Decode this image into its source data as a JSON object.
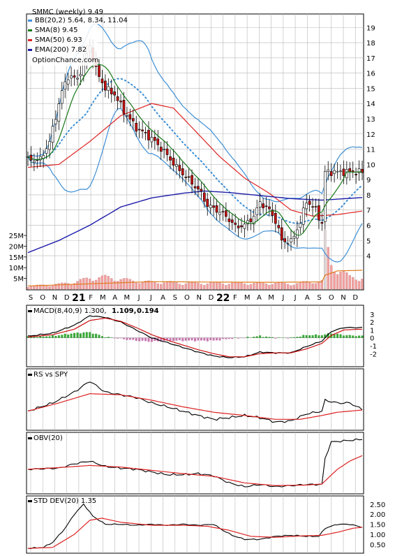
{
  "colors": {
    "bb": "#3d8fd6",
    "sma8": "#1a7a1a",
    "sma50": "#dd2222",
    "ema200": "#1c1ca8",
    "up": "#ffffff",
    "down": "#cc1111",
    "volume": "#f2a0a0",
    "volume_avg": "#e07a1a",
    "macd": "#000000",
    "macd_signal": "#cc1111",
    "macd_hist": "#3aa83a",
    "series_line": "#000000",
    "avg_line": "#dd2222"
  },
  "chart_data": [
    {
      "type": "candlestick",
      "title": "SMMC (weekly) 9.49",
      "watermark": "OptionChance.com",
      "legend": [
        {
          "key": "bb",
          "label": "BB(20,2) 5.64, 8.34, 11.04"
        },
        {
          "key": "sma8",
          "label": "SMA(8) 9.45"
        },
        {
          "key": "sma50",
          "label": "SMA(50) 6.93"
        },
        {
          "key": "ema200",
          "label": "EMA(200) 7.82"
        }
      ],
      "ylim": [
        2.9,
        19.7
      ],
      "y_ticks": [
        "4",
        "5",
        "6",
        "7",
        "8",
        "9",
        "10",
        "11",
        "12",
        "13",
        "14",
        "15",
        "16",
        "17",
        "18",
        "19"
      ],
      "x_ticks": [
        "S",
        "O",
        "N",
        "D",
        "21",
        "F",
        "M",
        "A",
        "M",
        "J",
        "J",
        "A",
        "S",
        "O",
        "N",
        "D",
        "22",
        "F",
        "M",
        "A",
        "M",
        "J",
        "J",
        "A",
        "S",
        "O",
        "N",
        "D"
      ],
      "year_ticks": [
        "21",
        "22"
      ],
      "close_anchors": [
        [
          0,
          10.3
        ],
        [
          4,
          10.3
        ],
        [
          7,
          11.5
        ],
        [
          11,
          14.8
        ],
        [
          13,
          15.8
        ],
        [
          16,
          15.6
        ],
        [
          20,
          17.8
        ],
        [
          22,
          16.2
        ],
        [
          25,
          15.0
        ],
        [
          28,
          14.6
        ],
        [
          31,
          13.5
        ],
        [
          35,
          12.4
        ],
        [
          38,
          12.0
        ],
        [
          41,
          11.5
        ],
        [
          45,
          10.6
        ],
        [
          48,
          9.8
        ],
        [
          52,
          9.0
        ],
        [
          56,
          8.1
        ],
        [
          58,
          7.3
        ],
        [
          61,
          7.0
        ],
        [
          64,
          6.6
        ],
        [
          67,
          5.9
        ],
        [
          70,
          6.0
        ],
        [
          73,
          6.6
        ],
        [
          75,
          7.5
        ],
        [
          78,
          7.0
        ],
        [
          80,
          6.3
        ],
        [
          82,
          5.0
        ],
        [
          85,
          4.9
        ],
        [
          88,
          6.2
        ],
        [
          90,
          7.6
        ],
        [
          93,
          7.0
        ],
        [
          95,
          6.1
        ],
        [
          96,
          9.5
        ],
        [
          99,
          9.5
        ],
        [
          104,
          9.5
        ],
        [
          108,
          9.49
        ]
      ],
      "sma50_anchors": [
        [
          0,
          9.8
        ],
        [
          10,
          10.0
        ],
        [
          20,
          11.5
        ],
        [
          30,
          13.2
        ],
        [
          40,
          14.0
        ],
        [
          47,
          13.7
        ],
        [
          55,
          12.0
        ],
        [
          62,
          10.5
        ],
        [
          70,
          9.1
        ],
        [
          78,
          8.1
        ],
        [
          85,
          7.0
        ],
        [
          92,
          6.6
        ],
        [
          100,
          6.7
        ],
        [
          108,
          6.93
        ]
      ],
      "ema200_anchors": [
        [
          0,
          4.2
        ],
        [
          10,
          5.0
        ],
        [
          20,
          6.0
        ],
        [
          30,
          7.2
        ],
        [
          40,
          7.8
        ],
        [
          50,
          8.1
        ],
        [
          57,
          8.25
        ],
        [
          65,
          8.15
        ],
        [
          75,
          7.95
        ],
        [
          85,
          7.75
        ],
        [
          95,
          7.65
        ],
        [
          108,
          7.82
        ]
      ]
    },
    {
      "type": "bar",
      "name": "Volume",
      "y_ticks": [
        "5M",
        "10M",
        "15M",
        "20M",
        "25M"
      ],
      "ylim": [
        0,
        26
      ],
      "values_anchors": [
        [
          0,
          1.5
        ],
        [
          5,
          2.0
        ],
        [
          10,
          2.5
        ],
        [
          15,
          3.5
        ],
        [
          20,
          5.5
        ],
        [
          25,
          6.0
        ],
        [
          30,
          5.0
        ],
        [
          35,
          4.0
        ],
        [
          40,
          3.5
        ],
        [
          45,
          3.5
        ],
        [
          50,
          3.0
        ],
        [
          55,
          3.0
        ],
        [
          60,
          3.0
        ],
        [
          65,
          3.0
        ],
        [
          70,
          3.0
        ],
        [
          75,
          2.8
        ],
        [
          80,
          3.0
        ],
        [
          85,
          2.5
        ],
        [
          90,
          3.5
        ],
        [
          95,
          4.0
        ],
        [
          96,
          25.0
        ],
        [
          98,
          12.0
        ],
        [
          100,
          10.0
        ],
        [
          104,
          6.0
        ],
        [
          108,
          5.5
        ]
      ],
      "avg_anchors": [
        [
          0,
          1.5
        ],
        [
          20,
          2.5
        ],
        [
          40,
          3.5
        ],
        [
          60,
          3.3
        ],
        [
          80,
          3.2
        ],
        [
          95,
          3.4
        ],
        [
          96,
          6.5
        ],
        [
          100,
          8.5
        ],
        [
          108,
          8.8
        ]
      ]
    },
    {
      "type": "line",
      "name": "MACD(8,40,9)",
      "legend_parts": [
        "MACD(8,40,9) 1.300,",
        "1.109,",
        "0.194"
      ],
      "y_ticks": [
        "3",
        "2",
        "1",
        "0",
        "-1",
        "-2"
      ],
      "ylim": [
        -3.3,
        3.6
      ],
      "macd_anchors": [
        [
          0,
          0.2
        ],
        [
          8,
          0.6
        ],
        [
          15,
          1.6
        ],
        [
          20,
          2.8
        ],
        [
          25,
          2.6
        ],
        [
          30,
          2.0
        ],
        [
          35,
          1.0
        ],
        [
          40,
          0.0
        ],
        [
          45,
          -0.6
        ],
        [
          50,
          -1.2
        ],
        [
          55,
          -1.8
        ],
        [
          60,
          -2.3
        ],
        [
          65,
          -2.5
        ],
        [
          70,
          -2.4
        ],
        [
          75,
          -1.8
        ],
        [
          80,
          -1.9
        ],
        [
          85,
          -1.9
        ],
        [
          90,
          -1.1
        ],
        [
          95,
          -0.4
        ],
        [
          98,
          0.8
        ],
        [
          102,
          1.3
        ],
        [
          108,
          1.3
        ]
      ],
      "signal_anchors": [
        [
          0,
          0.1
        ],
        [
          8,
          0.4
        ],
        [
          15,
          1.1
        ],
        [
          20,
          2.2
        ],
        [
          25,
          2.5
        ],
        [
          30,
          2.1
        ],
        [
          35,
          1.3
        ],
        [
          40,
          0.4
        ],
        [
          45,
          -0.3
        ],
        [
          50,
          -0.9
        ],
        [
          55,
          -1.5
        ],
        [
          60,
          -2.0
        ],
        [
          65,
          -2.4
        ],
        [
          70,
          -2.4
        ],
        [
          75,
          -2.0
        ],
        [
          80,
          -1.9
        ],
        [
          85,
          -1.9
        ],
        [
          90,
          -1.4
        ],
        [
          95,
          -0.7
        ],
        [
          98,
          0.3
        ],
        [
          102,
          1.0
        ],
        [
          108,
          1.1
        ]
      ]
    },
    {
      "type": "line",
      "name": "RS vs SPY",
      "ylim": [
        0,
        1
      ],
      "series_anchors": [
        [
          0,
          0.3
        ],
        [
          8,
          0.45
        ],
        [
          15,
          0.65
        ],
        [
          20,
          0.85
        ],
        [
          25,
          0.65
        ],
        [
          30,
          0.6
        ],
        [
          35,
          0.55
        ],
        [
          40,
          0.45
        ],
        [
          45,
          0.38
        ],
        [
          50,
          0.3
        ],
        [
          55,
          0.22
        ],
        [
          60,
          0.15
        ],
        [
          65,
          0.18
        ],
        [
          70,
          0.22
        ],
        [
          75,
          0.18
        ],
        [
          80,
          0.1
        ],
        [
          85,
          0.12
        ],
        [
          90,
          0.25
        ],
        [
          95,
          0.3
        ],
        [
          96,
          0.5
        ],
        [
          100,
          0.45
        ],
        [
          104,
          0.45
        ],
        [
          108,
          0.33
        ]
      ],
      "avg_anchors": [
        [
          0,
          0.3
        ],
        [
          10,
          0.45
        ],
        [
          20,
          0.62
        ],
        [
          30,
          0.6
        ],
        [
          40,
          0.5
        ],
        [
          50,
          0.38
        ],
        [
          60,
          0.28
        ],
        [
          70,
          0.22
        ],
        [
          80,
          0.15
        ],
        [
          88,
          0.15
        ],
        [
          95,
          0.22
        ],
        [
          100,
          0.28
        ],
        [
          108,
          0.32
        ]
      ]
    },
    {
      "type": "line",
      "name": "OBV(20)",
      "ylim": [
        0,
        1
      ],
      "series_anchors": [
        [
          0,
          0.4
        ],
        [
          10,
          0.42
        ],
        [
          15,
          0.5
        ],
        [
          20,
          0.55
        ],
        [
          25,
          0.45
        ],
        [
          30,
          0.42
        ],
        [
          35,
          0.4
        ],
        [
          40,
          0.35
        ],
        [
          45,
          0.3
        ],
        [
          50,
          0.3
        ],
        [
          55,
          0.32
        ],
        [
          60,
          0.28
        ],
        [
          65,
          0.15
        ],
        [
          70,
          0.08
        ],
        [
          75,
          0.12
        ],
        [
          80,
          0.08
        ],
        [
          85,
          0.1
        ],
        [
          90,
          0.12
        ],
        [
          95,
          0.12
        ],
        [
          96,
          0.6
        ],
        [
          98,
          0.9
        ],
        [
          102,
          0.92
        ],
        [
          108,
          0.95
        ]
      ],
      "avg_anchors": [
        [
          0,
          0.4
        ],
        [
          10,
          0.43
        ],
        [
          20,
          0.47
        ],
        [
          30,
          0.44
        ],
        [
          40,
          0.38
        ],
        [
          50,
          0.32
        ],
        [
          60,
          0.27
        ],
        [
          70,
          0.15
        ],
        [
          80,
          0.1
        ],
        [
          90,
          0.11
        ],
        [
          95,
          0.13
        ],
        [
          100,
          0.4
        ],
        [
          104,
          0.55
        ],
        [
          108,
          0.65
        ]
      ]
    },
    {
      "type": "line",
      "name": "STD DEV(20)",
      "legend": "STD DEV(20) 1.35",
      "y_ticks": [
        "2.50",
        "2.00",
        "1.50",
        "1.00",
        "0.50"
      ],
      "ylim": [
        0.2,
        2.7
      ],
      "series_anchors": [
        [
          0,
          0.3
        ],
        [
          5,
          0.35
        ],
        [
          8,
          0.6
        ],
        [
          12,
          1.3
        ],
        [
          15,
          2.0
        ],
        [
          18,
          2.5
        ],
        [
          21,
          1.9
        ],
        [
          25,
          1.5
        ],
        [
          30,
          1.5
        ],
        [
          35,
          1.45
        ],
        [
          40,
          1.5
        ],
        [
          45,
          1.45
        ],
        [
          50,
          1.5
        ],
        [
          55,
          1.45
        ],
        [
          60,
          1.5
        ],
        [
          63,
          1.2
        ],
        [
          66,
          0.95
        ],
        [
          70,
          0.75
        ],
        [
          75,
          0.75
        ],
        [
          80,
          0.9
        ],
        [
          85,
          0.95
        ],
        [
          90,
          0.9
        ],
        [
          94,
          0.9
        ],
        [
          96,
          1.3
        ],
        [
          100,
          1.5
        ],
        [
          104,
          1.5
        ],
        [
          108,
          1.35
        ]
      ],
      "avg_anchors": [
        [
          0,
          0.3
        ],
        [
          8,
          0.35
        ],
        [
          15,
          1.0
        ],
        [
          20,
          1.7
        ],
        [
          24,
          1.8
        ],
        [
          30,
          1.6
        ],
        [
          40,
          1.45
        ],
        [
          50,
          1.45
        ],
        [
          58,
          1.4
        ],
        [
          65,
          1.2
        ],
        [
          72,
          0.9
        ],
        [
          80,
          0.85
        ],
        [
          88,
          0.92
        ],
        [
          95,
          0.95
        ],
        [
          100,
          1.1
        ],
        [
          105,
          1.3
        ],
        [
          108,
          1.35
        ]
      ]
    }
  ]
}
